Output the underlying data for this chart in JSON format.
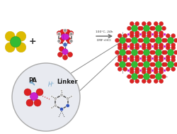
{
  "bg_color": "#ffffff",
  "reaction_text_line1": "100°C, 24h",
  "reaction_text_line2": "DMF+HCl",
  "pa_label": "PA",
  "linker_label": "Linker",
  "h_plus_label": "H⁺",
  "plus_sign": "+",
  "green_color": "#33bb33",
  "red_color": "#dd2222",
  "magenta_color": "#cc22cc",
  "yellow_color": "#ddbb00",
  "gray_color": "#999999",
  "light_gray": "#bbbbbb",
  "dark_gray": "#444444",
  "blue_color": "#3355cc",
  "light_blue": "#77aacc",
  "bond_color": "#555555",
  "circle_bg": "#e8eaf0",
  "circle_edge": "#aaaaaa"
}
